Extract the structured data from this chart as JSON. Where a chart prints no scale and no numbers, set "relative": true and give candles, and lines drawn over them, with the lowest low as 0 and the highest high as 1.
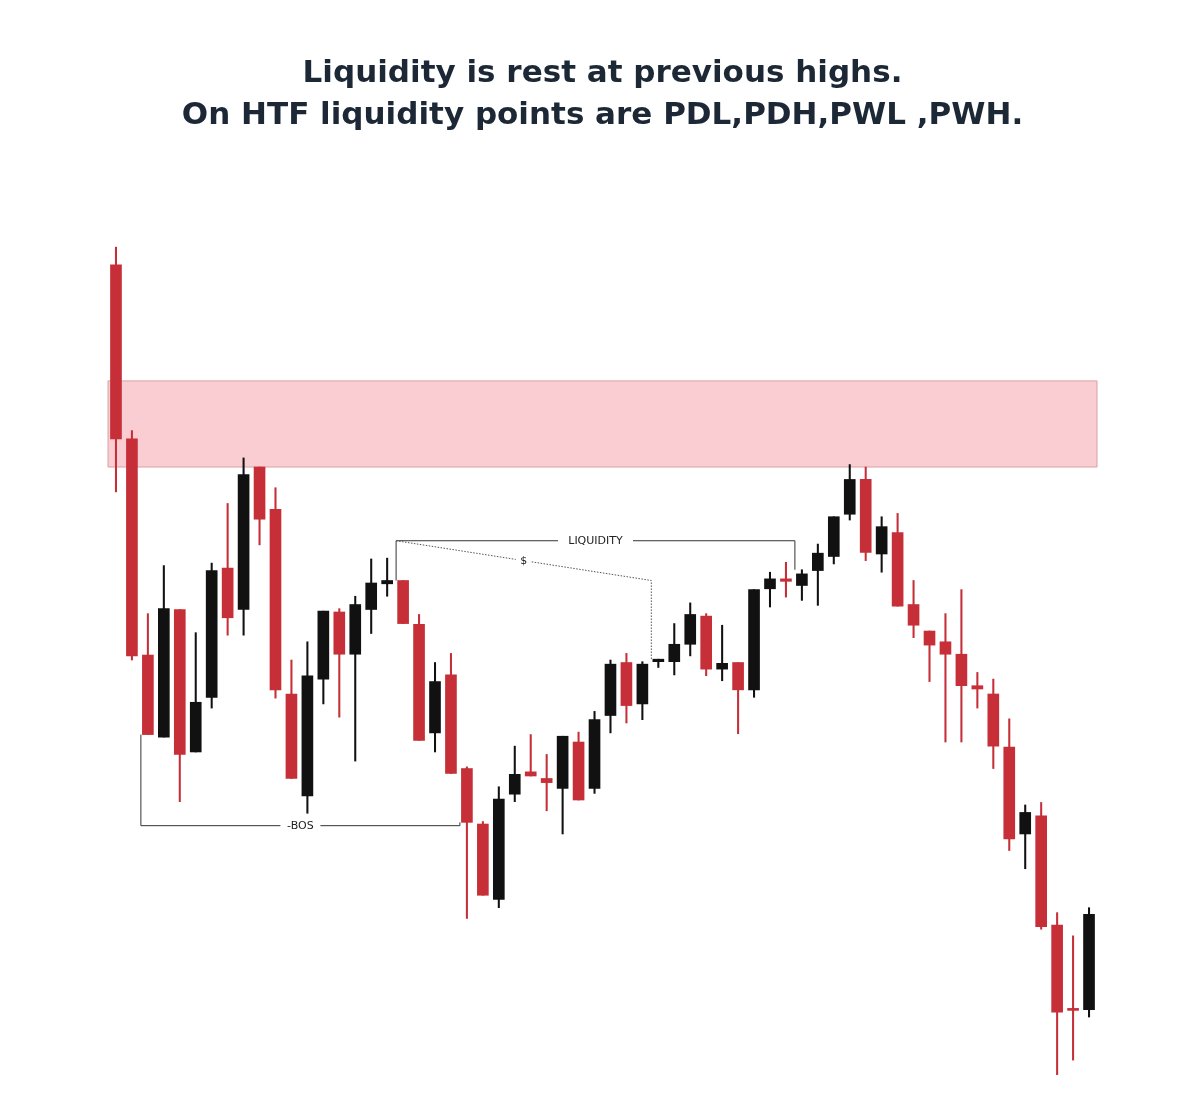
{
  "chart_data": {
    "type": "candlestick",
    "title": "Liquidity is rest at previous highs.\nOn HTF liquidity points are PDL,PDH,PWL ,PWH.",
    "relative": true,
    "categories": [
      null,
      null,
      null,
      null,
      null,
      null,
      null,
      null,
      null,
      null,
      null,
      null,
      null,
      null,
      null,
      null,
      null,
      null,
      null,
      null,
      null,
      null,
      null,
      null,
      null,
      null,
      null,
      null,
      null,
      null,
      null,
      null,
      null,
      null,
      null,
      null,
      null,
      null,
      null,
      null,
      null,
      null,
      null,
      null,
      null,
      null,
      null,
      null,
      null,
      null,
      null,
      null,
      null,
      null,
      null,
      null,
      null,
      null,
      null,
      null,
      null,
      null
    ],
    "ohlc": [
      [
        0.978,
        1,
        0.704,
        0.768
      ],
      [
        0.768,
        0.778,
        0.501,
        0.506
      ],
      [
        0.507,
        0.557,
        0.411,
        0.411
      ],
      [
        0.408,
        0.615,
        0.408,
        0.563
      ],
      [
        0.562,
        0.562,
        0.33,
        0.387
      ],
      [
        0.39,
        0.534,
        0.39,
        0.45
      ],
      [
        0.456,
        0.618,
        0.443,
        0.609
      ],
      [
        0.612,
        0.69,
        0.531,
        0.552
      ],
      [
        0.562,
        0.745,
        0.531,
        0.725
      ],
      [
        0.734,
        0.734,
        0.64,
        0.671
      ],
      [
        0.683,
        0.709,
        0.455,
        0.465
      ],
      [
        0.46,
        0.501,
        0.358,
        0.358
      ],
      [
        0.337,
        0.523,
        0.316,
        0.482
      ],
      [
        0.478,
        0.56,
        0.448,
        0.56
      ],
      [
        0.559,
        0.563,
        0.432,
        0.508
      ],
      [
        0.508,
        0.578,
        0.379,
        0.568
      ],
      [
        0.562,
        0.623,
        0.533,
        0.594
      ],
      [
        0.593,
        0.624,
        0.578,
        0.597
      ],
      [
        0.597,
        0.597,
        0.545,
        0.545
      ],
      [
        0.544,
        0.556,
        0.404,
        0.404
      ],
      [
        0.413,
        0.498,
        0.39,
        0.475
      ],
      [
        0.483,
        0.509,
        0.364,
        0.364
      ],
      [
        0.37,
        0.372,
        0.189,
        0.305
      ],
      [
        0.303,
        0.306,
        0.217,
        0.217
      ],
      [
        0.212,
        0.348,
        0.202,
        0.333
      ],
      [
        0.339,
        0.397,
        0.33,
        0.363
      ],
      [
        0.366,
        0.411,
        0.361,
        0.361
      ],
      [
        0.358,
        0.387,
        0.319,
        0.353
      ],
      [
        0.346,
        0.409,
        0.291,
        0.409
      ],
      [
        0.402,
        0.414,
        0.332,
        0.332
      ],
      [
        0.346,
        0.439,
        0.34,
        0.429
      ],
      [
        0.434,
        0.501,
        0.413,
        0.496
      ],
      [
        0.498,
        0.509,
        0.425,
        0.446
      ],
      [
        0.448,
        0.499,
        0.429,
        0.496
      ],
      [
        0.499,
        0.502,
        0.492,
        0.502
      ],
      [
        0.499,
        0.545,
        0.483,
        0.52
      ],
      [
        0.52,
        0.57,
        0.506,
        0.556
      ],
      [
        0.554,
        0.557,
        0.482,
        0.49
      ],
      [
        0.49,
        0.543,
        0.476,
        0.497
      ],
      [
        0.498,
        0.498,
        0.412,
        0.465
      ],
      [
        0.465,
        0.586,
        0.456,
        0.586
      ],
      [
        0.587,
        0.607,
        0.565,
        0.599
      ],
      [
        0.599,
        0.619,
        0.577,
        0.596
      ],
      [
        0.591,
        0.61,
        0.573,
        0.605
      ],
      [
        0.609,
        0.641,
        0.567,
        0.63
      ],
      [
        0.626,
        0.674,
        0.617,
        0.674
      ],
      [
        0.677,
        0.737,
        0.67,
        0.719
      ],
      [
        0.719,
        0.734,
        0.621,
        0.631
      ],
      [
        0.629,
        0.674,
        0.607,
        0.662
      ],
      [
        0.655,
        0.678,
        0.566,
        0.566
      ],
      [
        0.568,
        0.597,
        0.528,
        0.543
      ],
      [
        0.536,
        0.536,
        0.475,
        0.519
      ],
      [
        0.523,
        0.557,
        0.402,
        0.508
      ],
      [
        0.508,
        0.586,
        0.402,
        0.47
      ],
      [
        0.47,
        0.486,
        0.443,
        0.466
      ],
      [
        0.46,
        0.478,
        0.37,
        0.397
      ],
      [
        0.396,
        0.43,
        0.271,
        0.285
      ],
      [
        0.291,
        0.326,
        0.249,
        0.317
      ],
      [
        0.313,
        0.329,
        0.176,
        0.179
      ],
      [
        0.181,
        0.196,
        0,
        0.076
      ],
      [
        0.08,
        0.168,
        0.018,
        0.078
      ],
      [
        0.079,
        0.202,
        0.07,
        0.194
      ]
    ],
    "colors": [
      "#c62f37",
      "#c62f37",
      "#c62f37",
      "#111111",
      "#c62f37",
      "#111111",
      "#111111",
      "#c62f37",
      "#111111",
      "#c62f37",
      "#c62f37",
      "#c62f37",
      "#111111",
      "#111111",
      "#c62f37",
      "#111111",
      "#111111",
      "#111111",
      "#c62f37",
      "#c62f37",
      "#111111",
      "#c62f37",
      "#c62f37",
      "#c62f37",
      "#111111",
      "#111111",
      "#c62f37",
      "#c62f37",
      "#111111",
      "#c62f37",
      "#111111",
      "#111111",
      "#c62f37",
      "#111111",
      "#111111",
      "#111111",
      "#111111",
      "#c62f37",
      "#111111",
      "#c62f37",
      "#111111",
      "#111111",
      "#c62f37",
      "#111111",
      "#111111",
      "#111111",
      "#111111",
      "#c62f37",
      "#111111",
      "#c62f37",
      "#c62f37",
      "#c62f37",
      "#c62f37",
      "#c62f37",
      "#c62f37",
      "#c62f37",
      "#c62f37",
      "#111111",
      "#c62f37",
      "#c62f37",
      "#c62f37",
      "#111111"
    ],
    "bands": [
      {
        "axis": "y",
        "from": 0.734,
        "to": 0.838,
        "color": "#f9cdd1"
      }
    ],
    "annotations": [
      "LIQUIDITY",
      "$",
      "-BOS"
    ]
  }
}
